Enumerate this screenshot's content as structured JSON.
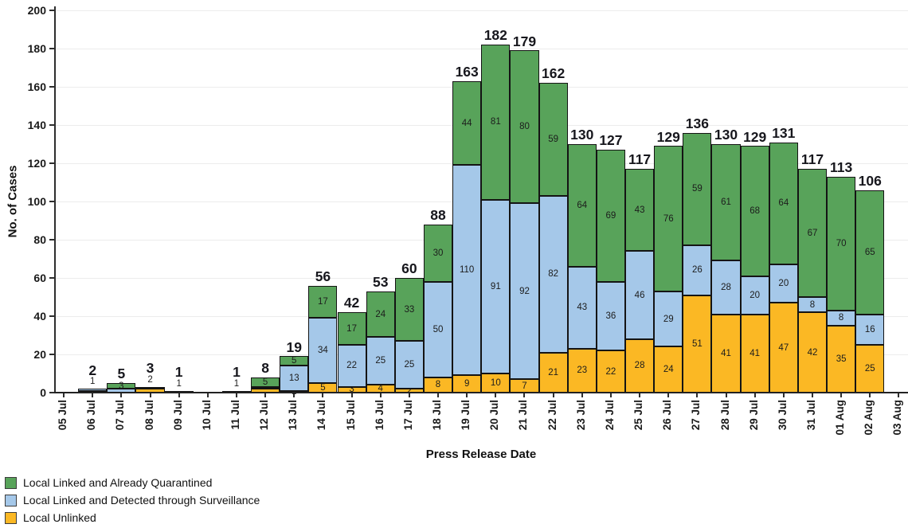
{
  "axes": {
    "y_title": "No. of Cases",
    "x_title": "Press Release Date",
    "y_ticks": [
      0,
      20,
      40,
      60,
      80,
      100,
      120,
      140,
      160,
      180,
      200
    ]
  },
  "legend": {
    "items": [
      {
        "key": "green",
        "label": "Local Linked and Already Quarantined",
        "color": "#58a35a"
      },
      {
        "key": "blue",
        "label": "Local Linked and Detected through Surveillance",
        "color": "#a5c8e9"
      },
      {
        "key": "orange",
        "label": "Local Unlinked",
        "color": "#fbb824"
      }
    ]
  },
  "colors": {
    "green": "#58a35a",
    "blue": "#a5c8e9",
    "orange": "#fbb824",
    "bar_border": "#141414",
    "gridline": "#ececec",
    "axis": "#2e2e2e"
  },
  "chart_data": {
    "type": "bar",
    "stacked": true,
    "title": "",
    "xlabel": "Press Release Date",
    "ylabel": "No. of Cases",
    "ylim": [
      0,
      200
    ],
    "grid": true,
    "legend_position": "bottom-left",
    "categories": [
      "05 Jul",
      "06 Jul",
      "07 Jul",
      "08 Jul",
      "09 Jul",
      "10 Jul",
      "11 Jul",
      "12 Jul",
      "13 Jul",
      "14 Jul",
      "15 Jul",
      "16 Jul",
      "17 Jul",
      "18 Jul",
      "19 Jul",
      "20 Jul",
      "21 Jul",
      "22 Jul",
      "23 Jul",
      "24 Jul",
      "25 Jul",
      "26 Jul",
      "27 Jul",
      "28 Jul",
      "29 Jul",
      "30 Jul",
      "31 Jul",
      "01 Aug",
      "02 Aug",
      "03 Aug"
    ],
    "series": [
      {
        "key": "orange",
        "name": "Local Unlinked",
        "color": "#fbb824",
        "values": [
          0,
          1,
          0,
          2,
          1,
          0,
          0,
          2,
          1,
          5,
          3,
          4,
          2,
          8,
          9,
          10,
          7,
          21,
          23,
          22,
          28,
          24,
          51,
          41,
          41,
          47,
          42,
          35,
          25,
          0
        ],
        "labels_shown": [
          0,
          0,
          0,
          1,
          1,
          0,
          0,
          0,
          1,
          1,
          1,
          1,
          1,
          1,
          1,
          1,
          1,
          1,
          1,
          1,
          1,
          1,
          1,
          1,
          1,
          1,
          1,
          1,
          1,
          0
        ]
      },
      {
        "key": "blue",
        "name": "Local Linked and Detected through Surveillance",
        "color": "#a5c8e9",
        "values": [
          0,
          1,
          2,
          1,
          0,
          0,
          1,
          1,
          13,
          34,
          22,
          25,
          25,
          50,
          110,
          91,
          92,
          82,
          43,
          36,
          46,
          29,
          26,
          28,
          20,
          20,
          8,
          8,
          16,
          0
        ],
        "labels_shown": [
          0,
          1,
          0,
          0,
          0,
          0,
          1,
          0,
          1,
          1,
          1,
          1,
          1,
          1,
          1,
          1,
          1,
          1,
          1,
          1,
          1,
          1,
          1,
          1,
          1,
          1,
          1,
          1,
          1,
          0
        ]
      },
      {
        "key": "green",
        "name": "Local Linked and Already Quarantined",
        "color": "#58a35a",
        "values": [
          0,
          0,
          3,
          0,
          0,
          0,
          0,
          5,
          5,
          17,
          17,
          24,
          33,
          30,
          44,
          81,
          80,
          59,
          64,
          69,
          43,
          76,
          59,
          61,
          68,
          64,
          67,
          70,
          65,
          0
        ],
        "labels_shown": [
          0,
          0,
          1,
          0,
          0,
          0,
          0,
          1,
          1,
          1,
          1,
          1,
          1,
          1,
          1,
          1,
          1,
          1,
          1,
          1,
          1,
          1,
          1,
          1,
          1,
          1,
          1,
          1,
          1,
          0
        ]
      }
    ],
    "totals": [
      0,
      2,
      5,
      3,
      1,
      0,
      1,
      8,
      19,
      56,
      42,
      53,
      60,
      88,
      163,
      182,
      179,
      162,
      130,
      127,
      117,
      129,
      136,
      130,
      129,
      131,
      117,
      113,
      106,
      0
    ]
  }
}
